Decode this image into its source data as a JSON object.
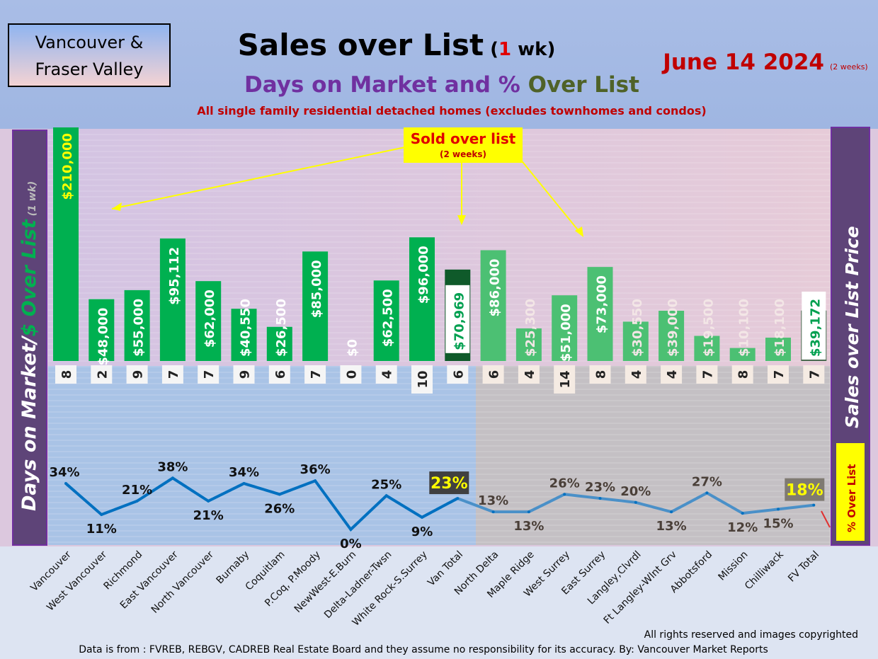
{
  "header": {
    "region_box": [
      "Vancouver &",
      "Fraser Valley"
    ],
    "title": "Sales over List",
    "title_suffix_open": "(",
    "title_suffix_num": "1",
    "title_suffix_close": " wk)",
    "subtitle_a": "Days on Market and %",
    "subtitle_b": "Over List",
    "note": "All single family residential detached homes (excludes townhomes and condos)",
    "date": "June 14  2024",
    "date_note": "(2 weeks)"
  },
  "callout": {
    "title": "Sold over list",
    "sub": "(2 weeks)"
  },
  "left_axis": {
    "label": "Days on Market/",
    "label_b": "$ Over List",
    "label_c": "(1 wk)"
  },
  "right_axis": {
    "label": "Sales over List Price",
    "pct_label": "% Over List"
  },
  "footer": {
    "copyright": "All rights reserved and  images copyrighted",
    "source": "Data is from : FVREB, REBGV, CADREB Real Estate Board and they assume no responsibility for its accuracy. By: Vancouver Market Reports"
  },
  "colors": {
    "bar": "#00b050",
    "bar_fv": "#4cc073",
    "line": "#0070c0",
    "line_fv": "#4a90c8",
    "title_red": "#c00000",
    "purple": "#7030a0"
  },
  "chart_data": {
    "type": "bar+line",
    "categories": [
      "Vancouver",
      "West Vancouver",
      "Richmond",
      "East Vancouver",
      "North Vancouver",
      "Burnaby",
      "Coquitlam",
      "P.Coq, P.Moody",
      "NewWest-E.Burn",
      "Delta-Ladner-Twsn",
      "White Rock-S.Surrey",
      "Van Total",
      "North Delta",
      "Maple Ridge",
      "West Surrey",
      "East Surrey",
      "Langley,Clvrdl",
      "Ft Langley-Wlnt Grv",
      "Abbotsford",
      "Mission",
      "Chilliwack",
      "FV Total"
    ],
    "series": [
      {
        "name": "$ Over List",
        "type": "bar",
        "values": [
          210000,
          48000,
          55000,
          95112,
          62000,
          40550,
          26500,
          85000,
          0,
          62500,
          96000,
          70969,
          86000,
          25300,
          51000,
          73000,
          30550,
          39000,
          19500,
          10100,
          18100,
          39172
        ],
        "labels": [
          "$210,000",
          "$48,000",
          "$55,000",
          "$95,112",
          "$62,000",
          "$40,550",
          "$26,500",
          "$85,000",
          "$0",
          "$62,500",
          "$96,000",
          "$70,969",
          "$86,000",
          "$25,300",
          "$51,000",
          "$73,000",
          "$30,550",
          "$39,000",
          "$19,500",
          "$10,100",
          "$18,100",
          "$39,172"
        ]
      },
      {
        "name": "Days on Market",
        "type": "label",
        "values": [
          8,
          2,
          9,
          7,
          7,
          9,
          6,
          7,
          0,
          4,
          10,
          6,
          6,
          4,
          14,
          8,
          4,
          4,
          7,
          8,
          7,
          7
        ]
      },
      {
        "name": "% Over List",
        "type": "line",
        "values": [
          34,
          11,
          21,
          38,
          21,
          34,
          26,
          36,
          0,
          25,
          9,
          23,
          13,
          13,
          26,
          23,
          20,
          13,
          27,
          12,
          15,
          18
        ],
        "labels": [
          "34%",
          "11%",
          "21%",
          "38%",
          "21%",
          "34%",
          "26%",
          "36%",
          "0%",
          "25%",
          "9%",
          "23%",
          "13%",
          "13%",
          "26%",
          "23%",
          "20%",
          "13%",
          "27%",
          "12%",
          "15%",
          "18%"
        ]
      }
    ]
  }
}
